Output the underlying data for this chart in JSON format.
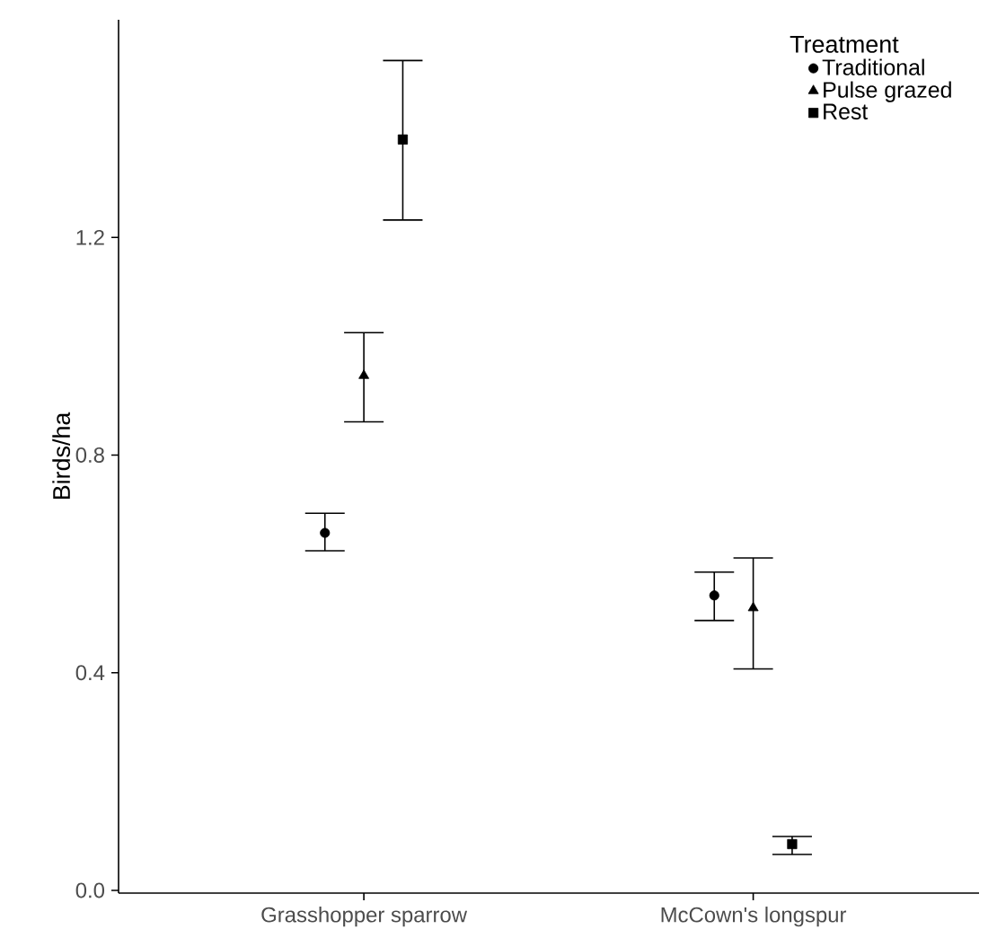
{
  "chart_data": {
    "type": "scatter",
    "ylabel": "Birds/ha",
    "legend_title": "Treatment",
    "legend": "top right",
    "categories": [
      "Grasshopper sparrow",
      "McCown's longspur"
    ],
    "ylim": [
      -0.005,
      1.6
    ],
    "yticks": [
      {
        "value": 0,
        "label": "0.0"
      },
      0.4,
      0.8,
      1.2
    ],
    "grid": false,
    "series": [
      {
        "name": "Traditional",
        "color": "#000000",
        "marker": "circle",
        "values": [
          0.657,
          0.542
        ],
        "errors": [
          [
            0.624,
            0.693
          ],
          [
            0.496,
            0.585
          ]
        ]
      },
      {
        "name": "Pulse grazed",
        "color": "#000000",
        "marker": "triangle",
        "values": [
          0.946,
          0.519
        ],
        "errors": [
          [
            0.861,
            1.025
          ],
          [
            0.407,
            0.611
          ]
        ]
      },
      {
        "name": "Rest",
        "color": "#000000",
        "marker": "square",
        "values": [
          1.38,
          0.085
        ],
        "errors": [
          [
            1.232,
            1.525
          ],
          [
            0.066,
            0.099
          ]
        ]
      }
    ]
  }
}
